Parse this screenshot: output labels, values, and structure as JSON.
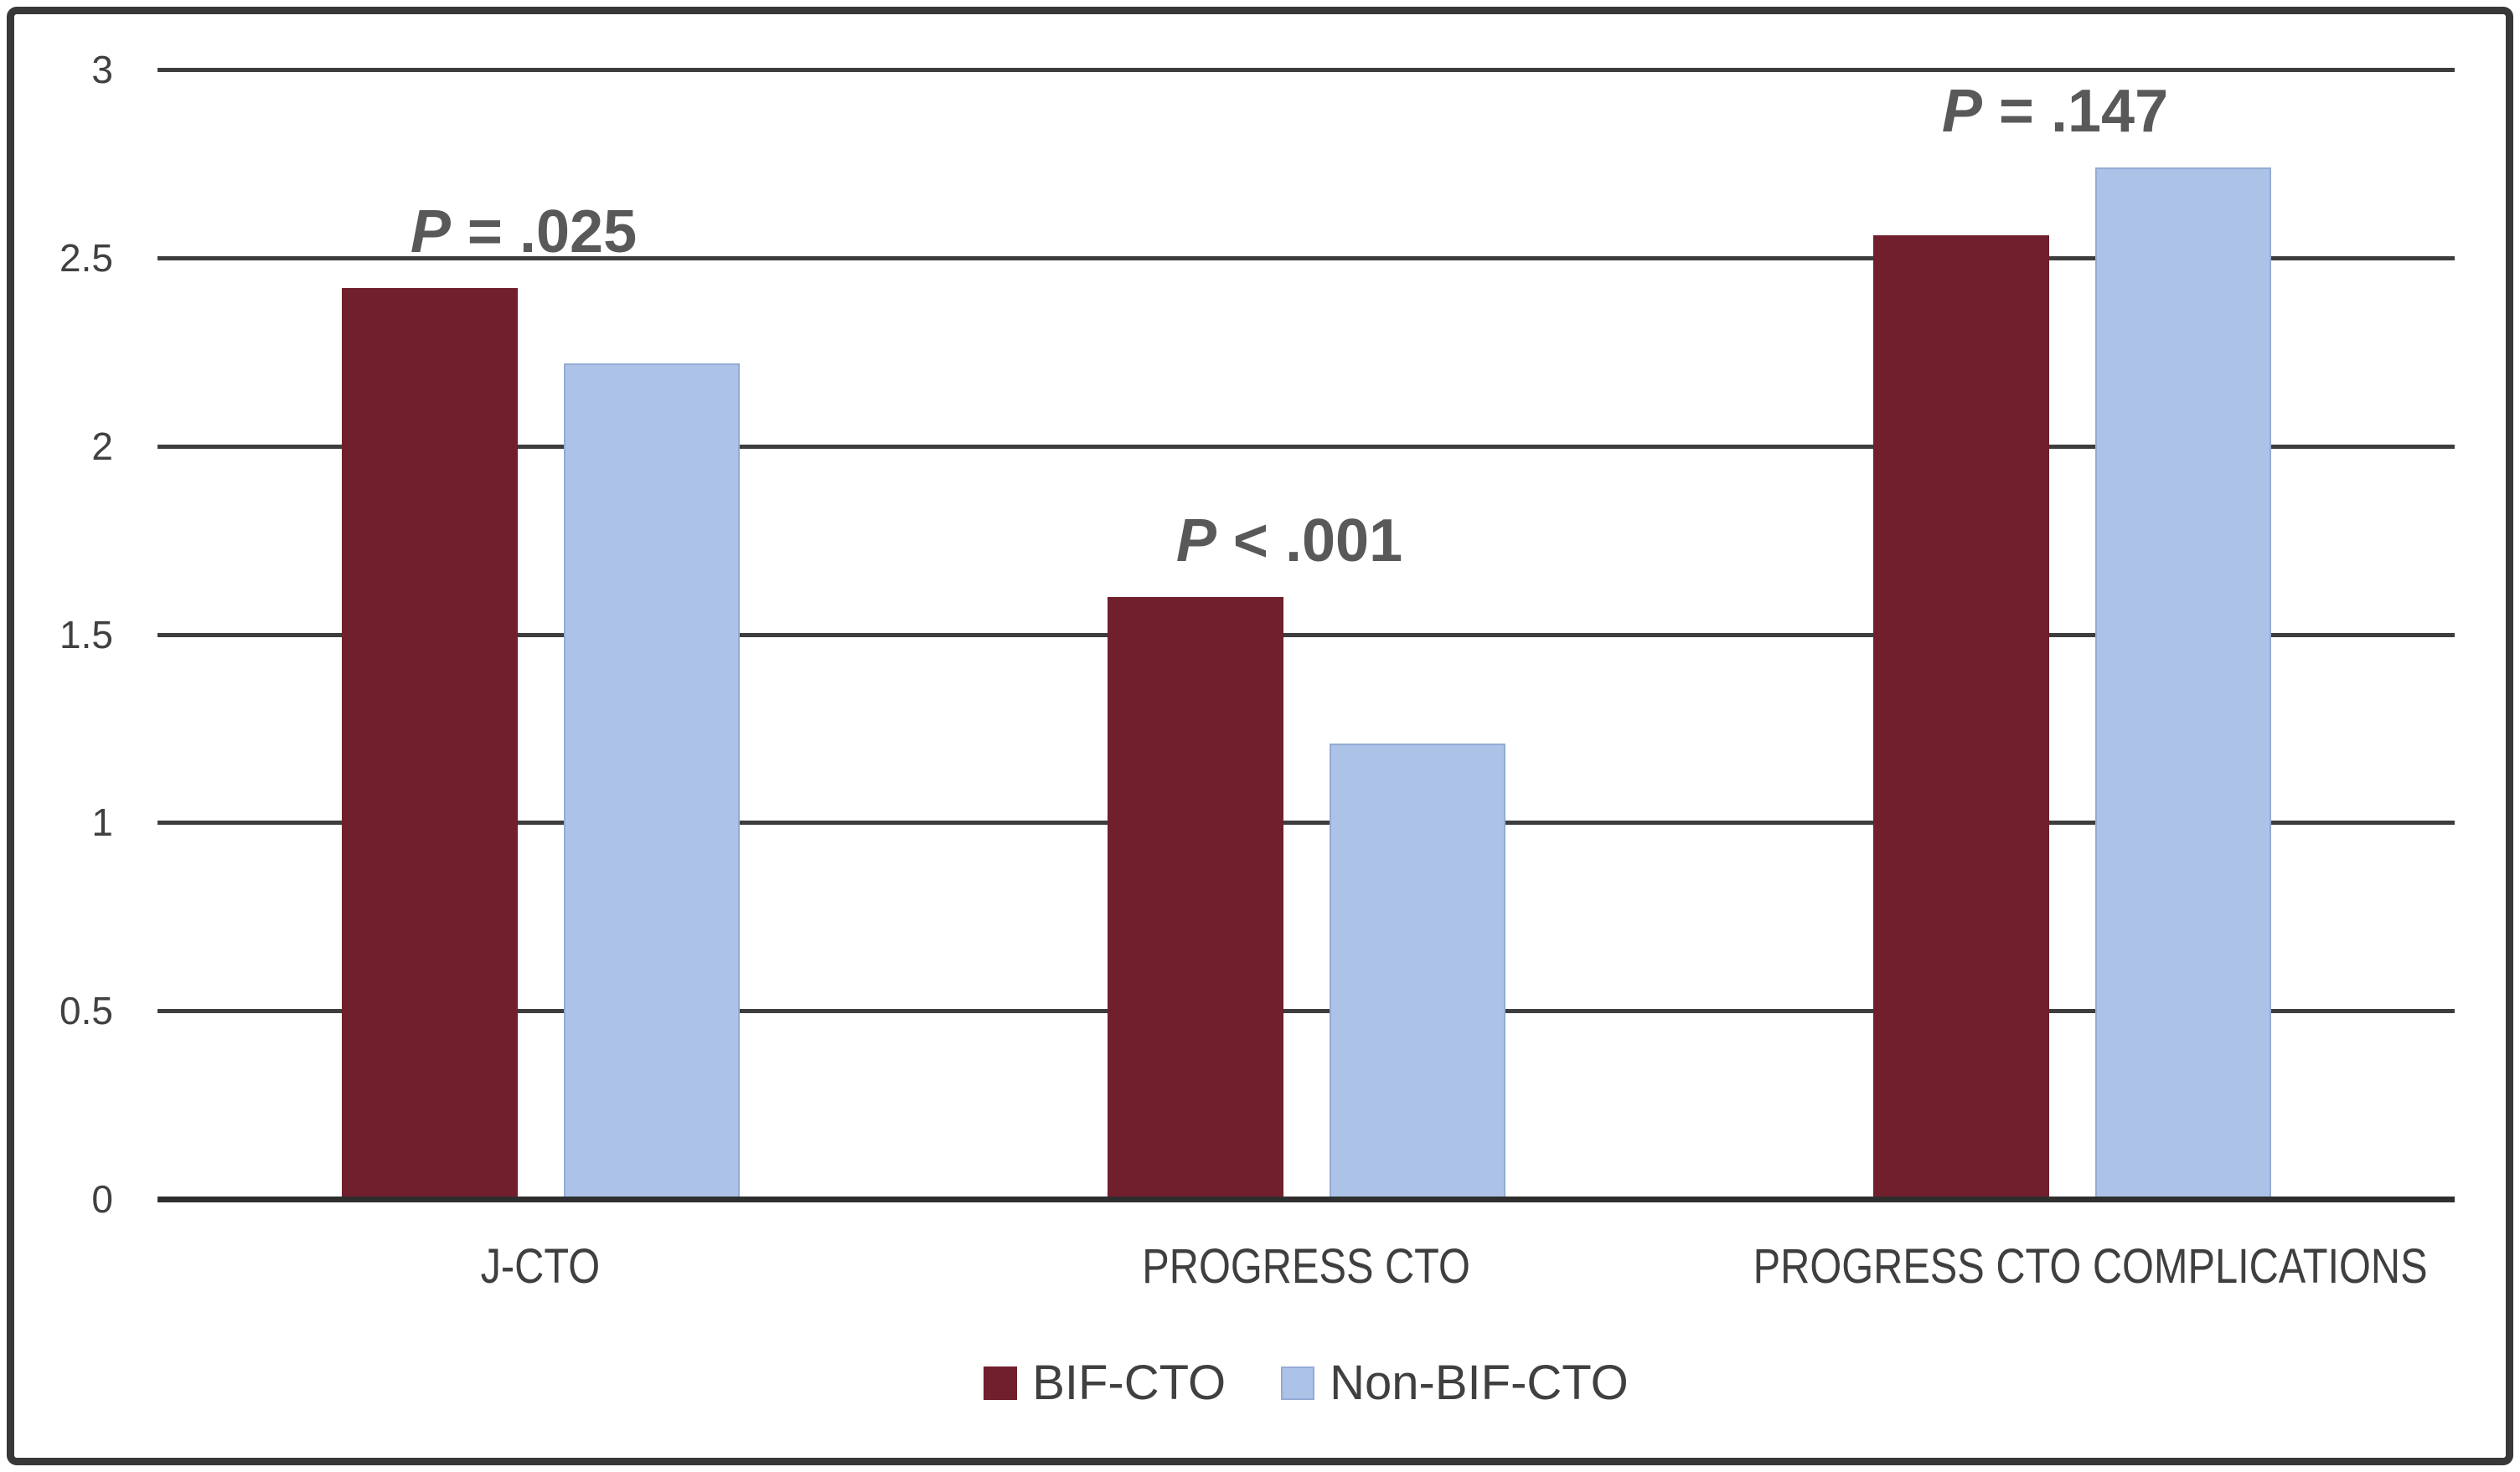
{
  "chart_data": {
    "type": "bar",
    "title": "",
    "categories": [
      "J-CTO",
      "PROGRESS CTO",
      "PROGRESS CTO COMPLICATIONS"
    ],
    "series": [
      {
        "name": "BIF-CTO",
        "color": "#711F2D",
        "border_color": "#711F2D",
        "values": [
          2.42,
          1.6,
          2.56
        ]
      },
      {
        "name": "Non-BIF-CTO",
        "color": "#ADC2E7",
        "border_color": "#94ABD5",
        "values": [
          2.22,
          1.21,
          2.74
        ]
      }
    ],
    "annotations": [
      {
        "category_index": 0,
        "label": "P = .025"
      },
      {
        "category_index": 1,
        "label": "P < .001"
      },
      {
        "category_index": 2,
        "label": "P = .147"
      }
    ],
    "y_axis": {
      "min": 0,
      "max": 3,
      "ticks": [
        0,
        0.5,
        1,
        1.5,
        2,
        2.5,
        3
      ],
      "tick_labels": [
        "0",
        "0.5",
        "1",
        "1.5",
        "2",
        "2.5",
        "3"
      ]
    },
    "grid": true,
    "legend": {
      "position": "bottom",
      "entries": [
        "BIF-CTO",
        "Non-BIF-CTO"
      ]
    },
    "colors": {
      "grid_line": "#3D3D3D",
      "axis_line": "#2E2E2E",
      "tick_text": "#404040",
      "category_text": "#3F3F3F",
      "annotation_text": "#595959",
      "legend_text": "#404040",
      "figure_border": "#383838",
      "background": "#FFFFFF"
    }
  }
}
